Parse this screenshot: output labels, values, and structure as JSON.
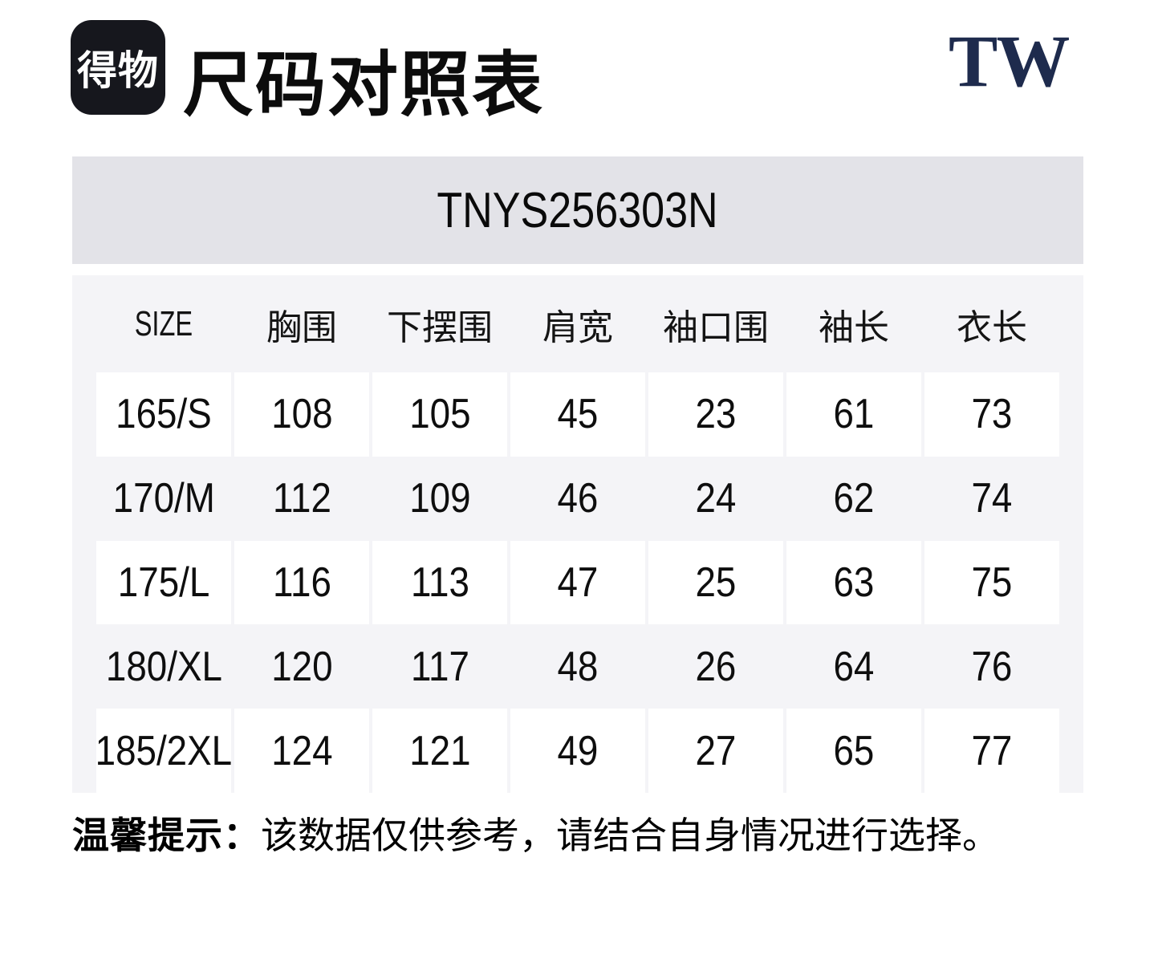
{
  "header": {
    "logo_text": "得物",
    "title": "尺码对照表",
    "brand": "TW"
  },
  "banner": {
    "product_code": "TNYS256303N"
  },
  "size_table": {
    "columns": [
      "SIZE",
      "胸围",
      "下摆围",
      "肩宽",
      "袖口围",
      "袖长",
      "衣长"
    ],
    "rows": [
      [
        "165/S",
        "108",
        "105",
        "45",
        "23",
        "61",
        "73"
      ],
      [
        "170/M",
        "112",
        "109",
        "46",
        "24",
        "62",
        "74"
      ],
      [
        "175/L",
        "116",
        "113",
        "47",
        "25",
        "63",
        "75"
      ],
      [
        "180/XL",
        "120",
        "117",
        "48",
        "26",
        "64",
        "76"
      ],
      [
        "185/2XL",
        "124",
        "121",
        "49",
        "27",
        "65",
        "77"
      ]
    ]
  },
  "footer": {
    "note_label": "温馨提示：",
    "note_text": "该数据仅供参考，请结合自身情况进行选择。"
  },
  "colors": {
    "brand_navy": "#1e2b4d",
    "logo_black": "#16171d",
    "banner_gray": "#e3e3e8",
    "table_gray": "#f4f4f7",
    "cell_white": "#ffffff"
  }
}
